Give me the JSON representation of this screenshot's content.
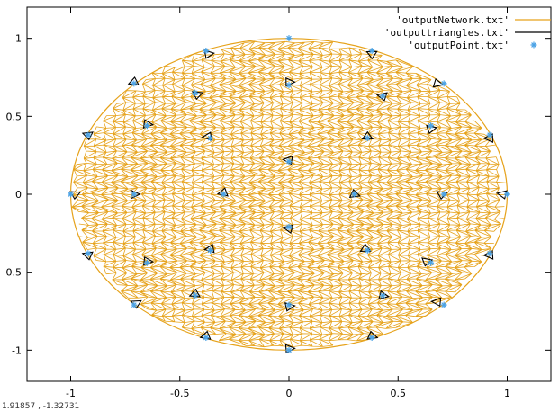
{
  "chart_data": {
    "type": "scatter",
    "title": "",
    "xlabel": "",
    "ylabel": "",
    "xlim": [
      -1.2,
      1.2
    ],
    "ylim": [
      -1.2,
      1.2
    ],
    "x_ticks": [
      "-1",
      "-0.5",
      "0",
      "0.5",
      "1"
    ],
    "y_ticks": [
      "1",
      "0.5",
      "0",
      "-0.5",
      "-1"
    ],
    "x_tick_values": [
      -1,
      -0.5,
      0,
      0.5,
      1
    ],
    "y_tick_values": [
      1,
      0.5,
      0,
      -0.5,
      -1
    ],
    "grid": false,
    "legend_position": "top-right",
    "series": [
      {
        "name": "'outputNetwork.txt'",
        "kind": "mesh",
        "color": "#e6a21a",
        "shape": "disk",
        "center": [
          0,
          0
        ],
        "radius": 1
      },
      {
        "name": "'outputtriangles.txt'",
        "kind": "triangles",
        "color": "#000000",
        "points": [
          [
            0.0,
            0.72
          ],
          [
            -0.42,
            0.64
          ],
          [
            0.43,
            0.63
          ],
          [
            -0.37,
            0.37
          ],
          [
            0.36,
            0.37
          ],
          [
            -0.65,
            0.45
          ],
          [
            0.65,
            0.42
          ],
          [
            -0.92,
            0.38
          ],
          [
            0.92,
            0.36
          ],
          [
            -0.71,
            0.72
          ],
          [
            0.68,
            0.71
          ],
          [
            -0.37,
            0.9
          ],
          [
            0.38,
            0.9
          ],
          [
            0.0,
            0.22
          ],
          [
            -0.3,
            0.01
          ],
          [
            0.3,
            0.0
          ],
          [
            -0.71,
            0.0
          ],
          [
            0.7,
            0.0
          ],
          [
            0.0,
            -0.22
          ],
          [
            -0.36,
            -0.35
          ],
          [
            0.35,
            -0.35
          ],
          [
            -0.65,
            -0.43
          ],
          [
            0.63,
            -0.43
          ],
          [
            -0.92,
            -0.39
          ],
          [
            0.92,
            -0.39
          ],
          [
            -0.43,
            -0.64
          ],
          [
            0.43,
            -0.65
          ],
          [
            0.0,
            -0.72
          ],
          [
            -0.7,
            -0.7
          ],
          [
            0.68,
            -0.69
          ],
          [
            -0.38,
            -0.91
          ],
          [
            0.38,
            -0.91
          ],
          [
            0.0,
            -0.99
          ],
          [
            -0.98,
            0.0
          ],
          [
            0.98,
            0.0
          ]
        ]
      },
      {
        "name": "'outputPoint.txt'",
        "kind": "points",
        "color": "#4ca3e6",
        "marker": "asterisk",
        "points": [
          [
            0.0,
            1.0
          ],
          [
            -0.38,
            0.92
          ],
          [
            0.38,
            0.92
          ],
          [
            -0.71,
            0.71
          ],
          [
            0.71,
            0.71
          ],
          [
            -0.43,
            0.65
          ],
          [
            0.43,
            0.63
          ],
          [
            0.0,
            0.7
          ],
          [
            -0.92,
            0.38
          ],
          [
            0.92,
            0.38
          ],
          [
            -0.65,
            0.44
          ],
          [
            0.65,
            0.44
          ],
          [
            -0.36,
            0.36
          ],
          [
            0.36,
            0.36
          ],
          [
            0.0,
            0.21
          ],
          [
            -1.0,
            0.0
          ],
          [
            1.0,
            0.0
          ],
          [
            -0.71,
            0.0
          ],
          [
            0.71,
            0.0
          ],
          [
            -0.3,
            0.0
          ],
          [
            0.3,
            0.0
          ],
          [
            0.0,
            -0.21
          ],
          [
            -0.36,
            -0.36
          ],
          [
            0.36,
            -0.36
          ],
          [
            -0.65,
            -0.44
          ],
          [
            0.65,
            -0.44
          ],
          [
            -0.92,
            -0.38
          ],
          [
            0.92,
            -0.38
          ],
          [
            -0.43,
            -0.65
          ],
          [
            0.43,
            -0.65
          ],
          [
            0.0,
            -0.71
          ],
          [
            -0.71,
            -0.71
          ],
          [
            0.71,
            -0.71
          ],
          [
            -0.38,
            -0.92
          ],
          [
            0.38,
            -0.92
          ],
          [
            0.0,
            -1.0
          ]
        ]
      }
    ]
  },
  "status_text": "1.91857 , -1.32731"
}
